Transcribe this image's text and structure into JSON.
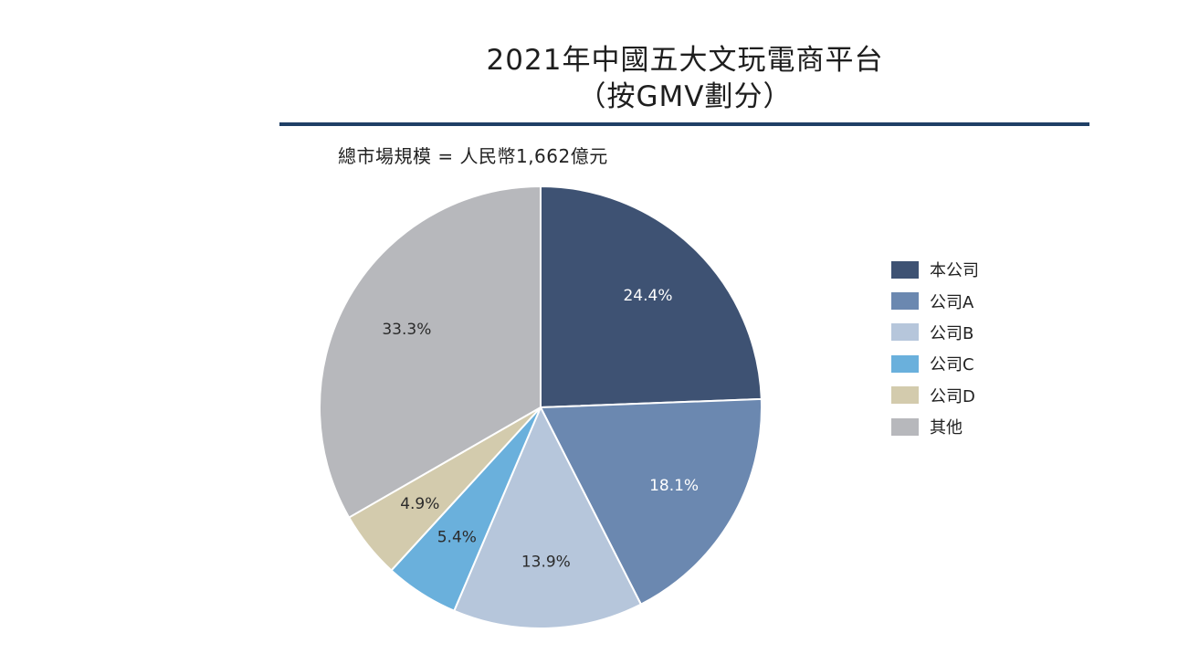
{
  "chart_data": {
    "type": "pie",
    "title": [
      "2021年中國五大文玩電商平台",
      "（按GMV劃分）"
    ],
    "subtitle": "總市場規模 = 人民幣1,662億元",
    "legend_position": "right",
    "slices": [
      {
        "name": "本公司",
        "value": 24.4,
        "label": "24.4%",
        "color": "#3e5273",
        "label_color": "#ffffff"
      },
      {
        "name": "公司A",
        "value": 18.1,
        "label": "18.1%",
        "color": "#6b88b0",
        "label_color": "#ffffff"
      },
      {
        "name": "公司B",
        "value": 13.9,
        "label": "13.9%",
        "color": "#b6c6db",
        "label_color": "#2b2b2b"
      },
      {
        "name": "公司C",
        "value": 5.4,
        "label": "5.4%",
        "color": "#6ab0dc",
        "label_color": "#2b2b2b"
      },
      {
        "name": "公司D",
        "value": 4.9,
        "label": "4.9%",
        "color": "#d3cbad",
        "label_color": "#2b2b2b"
      },
      {
        "name": "其他",
        "value": 33.3,
        "label": "33.3%",
        "color": "#b7b8bc",
        "label_color": "#2b2b2b"
      }
    ]
  }
}
